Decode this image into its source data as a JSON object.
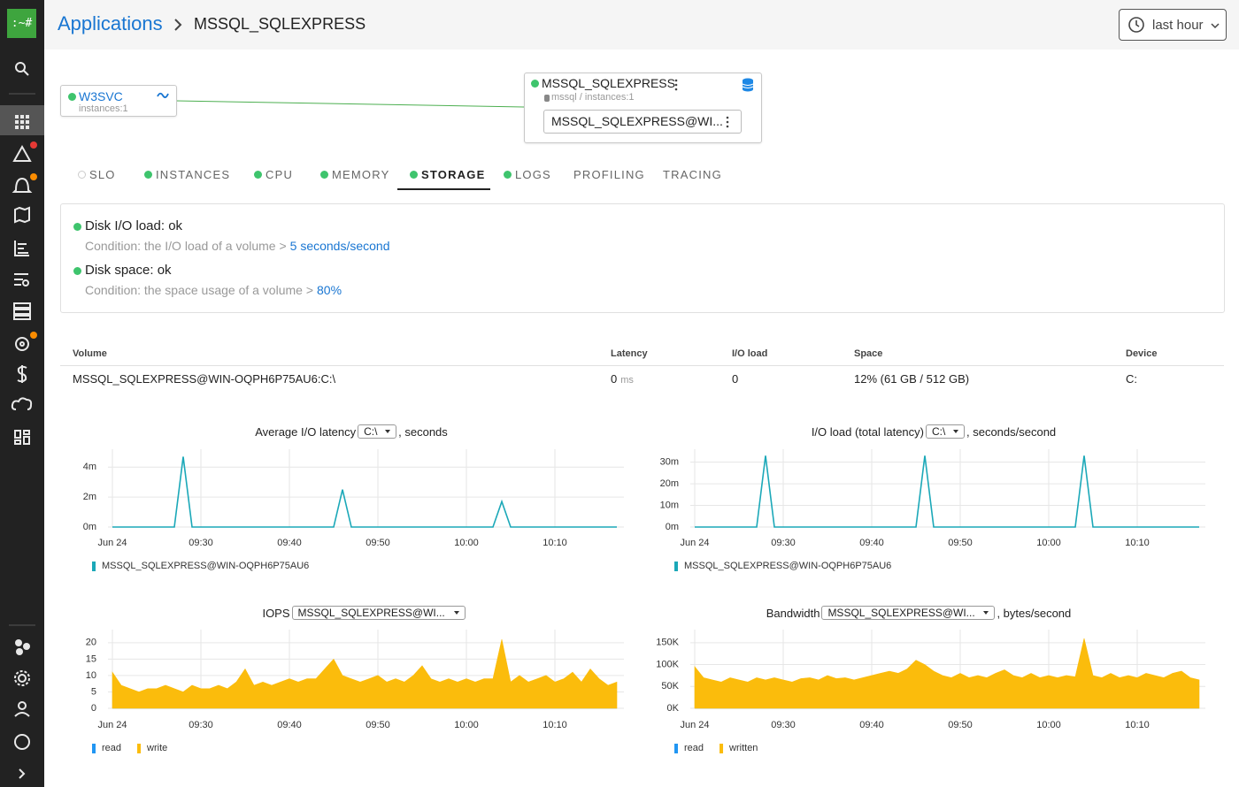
{
  "sidebar": {
    "logo": ":~#"
  },
  "header": {
    "breadcrumb_root": "Applications",
    "breadcrumb_current": "MSSQL_SQLEXPRESS",
    "time_range": "last hour"
  },
  "topology": {
    "source": {
      "name": "W3SVC",
      "meta": "instances:1"
    },
    "target": {
      "name": "MSSQL_SQLEXPRESS",
      "meta": "mssql / instances:1",
      "instance": "MSSQL_SQLEXPRESS@WI..."
    }
  },
  "tabs": [
    {
      "label": "SLO",
      "status": "unknown"
    },
    {
      "label": "INSTANCES",
      "status": "ok"
    },
    {
      "label": "CPU",
      "status": "ok"
    },
    {
      "label": "MEMORY",
      "status": "ok"
    },
    {
      "label": "STORAGE",
      "status": "ok",
      "active": true
    },
    {
      "label": "LOGS",
      "status": "ok"
    },
    {
      "label": "PROFILING"
    },
    {
      "label": "TRACING"
    }
  ],
  "checks": [
    {
      "title": "Disk I/O load: ok",
      "status": "ok",
      "condition": "Condition: the I/O load of a volume >",
      "threshold": "5 seconds/second"
    },
    {
      "title": "Disk space: ok",
      "status": "ok",
      "condition": "Condition: the space usage of a volume >",
      "threshold": "80%"
    }
  ],
  "table": {
    "columns": [
      "Volume",
      "Latency",
      "I/O load",
      "Space",
      "Device"
    ],
    "rows": [
      {
        "volume": "MSSQL_SQLEXPRESS@WIN-OQPH6P75AU6:C:\\",
        "latency": 0,
        "latency_unit": "ms",
        "io_load": 0,
        "space": "12% (61 GB / 512 GB)",
        "device": "C:"
      }
    ]
  },
  "chart_data": [
    {
      "type": "line",
      "title": "Average I/O latency",
      "selector": "C:\\",
      "title_suffix": ", seconds",
      "x": [
        "09:20",
        "09:21",
        "09:22",
        "09:23",
        "09:24",
        "09:25",
        "09:26",
        "09:27",
        "09:28",
        "09:29",
        "09:30",
        "09:31",
        "09:32",
        "09:33",
        "09:34",
        "09:35",
        "09:36",
        "09:37",
        "09:38",
        "09:39",
        "09:40",
        "09:41",
        "09:42",
        "09:43",
        "09:44",
        "09:45",
        "09:46",
        "09:47",
        "09:48",
        "09:49",
        "09:50",
        "09:51",
        "09:52",
        "09:53",
        "09:54",
        "09:55",
        "09:56",
        "09:57",
        "09:58",
        "09:59",
        "10:00",
        "10:01",
        "10:02",
        "10:03",
        "10:04",
        "10:05",
        "10:06",
        "10:07",
        "10:08",
        "10:09",
        "10:10",
        "10:11",
        "10:12",
        "10:13",
        "10:14",
        "10:15",
        "10:16",
        "10:17"
      ],
      "xlim": [
        "09:20",
        "10:18"
      ],
      "xticks": [
        {
          "value": "09:20",
          "label": "Jun 24"
        },
        "09:30",
        "09:40",
        "09:50",
        "10:00",
        "10:10"
      ],
      "ylim": [
        0,
        0.0052
      ],
      "yticks": [
        {
          "value": 0,
          "label": "0m"
        },
        {
          "value": 0.002,
          "label": "2m"
        },
        {
          "value": 0.004,
          "label": "4m"
        }
      ],
      "grid": true,
      "series": [
        {
          "name": "MSSQL_SQLEXPRESS@WIN-OQPH6P75AU6",
          "color": "#1ba8b8",
          "values": [
            0,
            0,
            0,
            0,
            0,
            0,
            0,
            0,
            0.0047,
            0,
            0,
            0,
            0,
            0,
            0,
            0,
            0,
            0,
            0,
            0,
            0,
            0,
            0,
            0,
            0,
            0,
            0.0025,
            0,
            0,
            0,
            0,
            0,
            0,
            0,
            0,
            0,
            0,
            0,
            0,
            0,
            0,
            0,
            0,
            0,
            0.0017,
            0,
            0,
            0,
            0,
            0,
            0,
            0,
            0,
            0,
            0,
            0,
            0,
            0
          ]
        }
      ]
    },
    {
      "type": "line",
      "title": "I/O load (total latency)",
      "selector": "C:\\",
      "title_suffix": ", seconds/second",
      "x": [
        "09:20",
        "09:21",
        "09:22",
        "09:23",
        "09:24",
        "09:25",
        "09:26",
        "09:27",
        "09:28",
        "09:29",
        "09:30",
        "09:31",
        "09:32",
        "09:33",
        "09:34",
        "09:35",
        "09:36",
        "09:37",
        "09:38",
        "09:39",
        "09:40",
        "09:41",
        "09:42",
        "09:43",
        "09:44",
        "09:45",
        "09:46",
        "09:47",
        "09:48",
        "09:49",
        "09:50",
        "09:51",
        "09:52",
        "09:53",
        "09:54",
        "09:55",
        "09:56",
        "09:57",
        "09:58",
        "09:59",
        "10:00",
        "10:01",
        "10:02",
        "10:03",
        "10:04",
        "10:05",
        "10:06",
        "10:07",
        "10:08",
        "10:09",
        "10:10",
        "10:11",
        "10:12",
        "10:13",
        "10:14",
        "10:15",
        "10:16",
        "10:17"
      ],
      "xlim": [
        "09:20",
        "10:18"
      ],
      "xticks": [
        {
          "value": "09:20",
          "label": "Jun 24"
        },
        "09:30",
        "09:40",
        "09:50",
        "10:00",
        "10:10"
      ],
      "ylim": [
        0,
        0.036
      ],
      "yticks": [
        {
          "value": 0,
          "label": "0m"
        },
        {
          "value": 0.01,
          "label": "10m"
        },
        {
          "value": 0.02,
          "label": "20m"
        },
        {
          "value": 0.03,
          "label": "30m"
        }
      ],
      "grid": true,
      "series": [
        {
          "name": "MSSQL_SQLEXPRESS@WIN-OQPH6P75AU6",
          "color": "#1ba8b8",
          "values": [
            0,
            0,
            0,
            0,
            0,
            0,
            0,
            0,
            0.033,
            0,
            0,
            0,
            0,
            0,
            0,
            0,
            0,
            0,
            0,
            0,
            0,
            0,
            0,
            0,
            0,
            0,
            0.033,
            0,
            0,
            0,
            0,
            0,
            0,
            0,
            0,
            0,
            0,
            0,
            0,
            0,
            0,
            0,
            0,
            0,
            0.033,
            0,
            0,
            0,
            0,
            0,
            0,
            0,
            0,
            0,
            0,
            0,
            0,
            0
          ]
        }
      ]
    },
    {
      "type": "area",
      "stacked": true,
      "title": "IOPS",
      "selector": "MSSQL_SQLEXPRESS@WI...",
      "x": [
        "09:20",
        "09:21",
        "09:22",
        "09:23",
        "09:24",
        "09:25",
        "09:26",
        "09:27",
        "09:28",
        "09:29",
        "09:30",
        "09:31",
        "09:32",
        "09:33",
        "09:34",
        "09:35",
        "09:36",
        "09:37",
        "09:38",
        "09:39",
        "09:40",
        "09:41",
        "09:42",
        "09:43",
        "09:44",
        "09:45",
        "09:46",
        "09:47",
        "09:48",
        "09:49",
        "09:50",
        "09:51",
        "09:52",
        "09:53",
        "09:54",
        "09:55",
        "09:56",
        "09:57",
        "09:58",
        "09:59",
        "10:00",
        "10:01",
        "10:02",
        "10:03",
        "10:04",
        "10:05",
        "10:06",
        "10:07",
        "10:08",
        "10:09",
        "10:10",
        "10:11",
        "10:12",
        "10:13",
        "10:14",
        "10:15",
        "10:16",
        "10:17"
      ],
      "xlim": [
        "09:20",
        "10:18"
      ],
      "xticks": [
        {
          "value": "09:20",
          "label": "Jun 24"
        },
        "09:30",
        "09:40",
        "09:50",
        "10:00",
        "10:10"
      ],
      "ylim": [
        0,
        24
      ],
      "yticks": [
        0,
        5,
        10,
        15,
        20
      ],
      "grid": true,
      "series": [
        {
          "name": "read",
          "color": "#2196f3",
          "values": [
            0,
            0,
            0,
            0,
            0,
            0,
            0,
            0,
            0,
            0,
            0,
            0,
            0,
            0,
            0,
            0,
            0,
            0,
            0,
            0,
            0,
            0,
            0,
            0,
            0,
            0,
            0,
            0,
            0,
            0,
            0,
            0,
            0,
            0,
            0,
            0,
            0,
            0,
            0,
            0,
            0,
            0,
            0,
            0,
            0,
            0,
            0,
            0,
            0,
            0,
            0,
            0,
            0,
            0,
            0,
            0,
            0,
            0
          ]
        },
        {
          "name": "write",
          "color": "#fbbc0c",
          "values": [
            11,
            7,
            6,
            5,
            6,
            6,
            7,
            6,
            5,
            7,
            6,
            6,
            7,
            6,
            8,
            12,
            7,
            8,
            7,
            8,
            9,
            8,
            9,
            9,
            12,
            15,
            10,
            9,
            8,
            9,
            10,
            8,
            9,
            8,
            10,
            13,
            9,
            8,
            9,
            8,
            9,
            8,
            9,
            9,
            21,
            8,
            10,
            8,
            9,
            10,
            8,
            9,
            11,
            8,
            12,
            9,
            7,
            8
          ]
        }
      ]
    },
    {
      "type": "area",
      "stacked": true,
      "title": "Bandwidth",
      "selector": "MSSQL_SQLEXPRESS@WI...",
      "title_suffix": ", bytes/second",
      "x": [
        "09:20",
        "09:21",
        "09:22",
        "09:23",
        "09:24",
        "09:25",
        "09:26",
        "09:27",
        "09:28",
        "09:29",
        "09:30",
        "09:31",
        "09:32",
        "09:33",
        "09:34",
        "09:35",
        "09:36",
        "09:37",
        "09:38",
        "09:39",
        "09:40",
        "09:41",
        "09:42",
        "09:43",
        "09:44",
        "09:45",
        "09:46",
        "09:47",
        "09:48",
        "09:49",
        "09:50",
        "09:51",
        "09:52",
        "09:53",
        "09:54",
        "09:55",
        "09:56",
        "09:57",
        "09:58",
        "09:59",
        "10:00",
        "10:01",
        "10:02",
        "10:03",
        "10:04",
        "10:05",
        "10:06",
        "10:07",
        "10:08",
        "10:09",
        "10:10",
        "10:11",
        "10:12",
        "10:13",
        "10:14",
        "10:15",
        "10:16",
        "10:17"
      ],
      "xlim": [
        "09:20",
        "10:18"
      ],
      "xticks": [
        {
          "value": "09:20",
          "label": "Jun 24"
        },
        "09:30",
        "09:40",
        "09:50",
        "10:00",
        "10:10"
      ],
      "ylim": [
        0,
        180000
      ],
      "yticks": [
        {
          "value": 0,
          "label": "0K"
        },
        {
          "value": 50000,
          "label": "50K"
        },
        {
          "value": 100000,
          "label": "100K"
        },
        {
          "value": 150000,
          "label": "150K"
        }
      ],
      "grid": true,
      "series": [
        {
          "name": "read",
          "color": "#2196f3",
          "values": [
            0,
            0,
            0,
            0,
            0,
            0,
            0,
            0,
            0,
            0,
            0,
            0,
            0,
            0,
            0,
            0,
            0,
            0,
            0,
            0,
            0,
            0,
            0,
            0,
            0,
            0,
            0,
            0,
            0,
            0,
            0,
            0,
            0,
            0,
            0,
            0,
            0,
            0,
            0,
            0,
            0,
            0,
            0,
            0,
            0,
            0,
            0,
            0,
            0,
            0,
            0,
            0,
            0,
            0,
            0,
            0,
            0,
            0
          ]
        },
        {
          "name": "written",
          "color": "#fbbc0c",
          "values": [
            95000,
            70000,
            65000,
            60000,
            70000,
            65000,
            60000,
            70000,
            65000,
            70000,
            65000,
            60000,
            68000,
            70000,
            65000,
            75000,
            68000,
            70000,
            65000,
            70000,
            75000,
            80000,
            85000,
            80000,
            90000,
            110000,
            100000,
            85000,
            75000,
            70000,
            80000,
            70000,
            75000,
            70000,
            80000,
            88000,
            75000,
            70000,
            80000,
            70000,
            75000,
            70000,
            75000,
            72000,
            160000,
            75000,
            70000,
            80000,
            70000,
            75000,
            70000,
            80000,
            75000,
            70000,
            80000,
            85000,
            70000,
            65000
          ]
        }
      ]
    }
  ]
}
